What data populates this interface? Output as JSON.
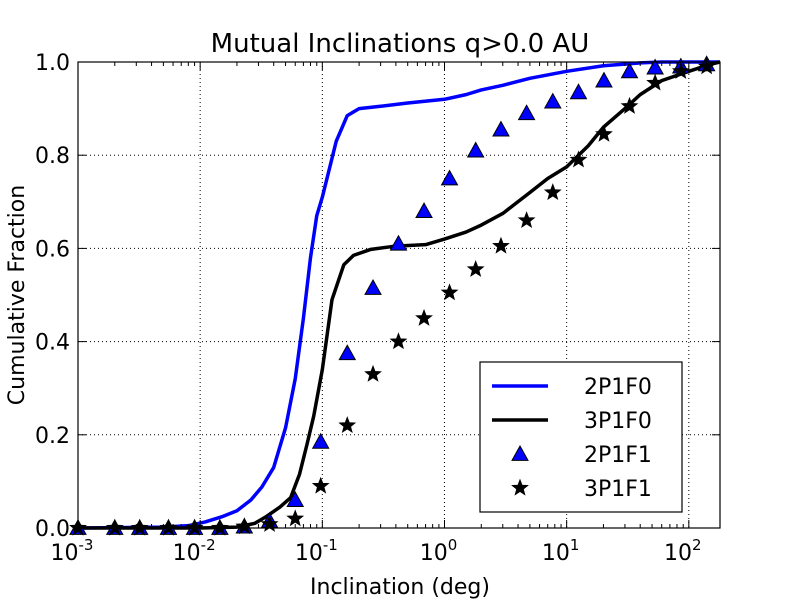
{
  "chart_data": {
    "type": "line",
    "title": "Mutual Inclinations q>0.0 AU",
    "xlabel": "Inclination (deg)",
    "ylabel": "Cumulative Fraction",
    "xscale": "log",
    "xlim": [
      0.001,
      180
    ],
    "ylim": [
      0,
      1.0
    ],
    "grid": true,
    "legend_position": "bottom-right",
    "x_ticks": [
      {
        "base": "10",
        "exp": "-3",
        "value": 0.001
      },
      {
        "base": "10",
        "exp": "-2",
        "value": 0.01
      },
      {
        "base": "10",
        "exp": "-1",
        "value": 0.1
      },
      {
        "base": "10",
        "exp": "0",
        "value": 1
      },
      {
        "base": "10",
        "exp": "1",
        "value": 10
      },
      {
        "base": "10",
        "exp": "2",
        "value": 100
      }
    ],
    "y_ticks": [
      {
        "label": "0.0",
        "value": 0.0
      },
      {
        "label": "0.2",
        "value": 0.2
      },
      {
        "label": "0.4",
        "value": 0.4
      },
      {
        "label": "0.6",
        "value": 0.6
      },
      {
        "label": "0.8",
        "value": 0.8
      },
      {
        "label": "1.0",
        "value": 1.0
      }
    ],
    "series": [
      {
        "name": "2P1F0",
        "style": "line",
        "color": "#0000ff",
        "points": [
          [
            0.001,
            0.0
          ],
          [
            0.005,
            0.002
          ],
          [
            0.008,
            0.005
          ],
          [
            0.011,
            0.013
          ],
          [
            0.015,
            0.024
          ],
          [
            0.02,
            0.037
          ],
          [
            0.026,
            0.06
          ],
          [
            0.032,
            0.088
          ],
          [
            0.04,
            0.13
          ],
          [
            0.05,
            0.215
          ],
          [
            0.06,
            0.32
          ],
          [
            0.07,
            0.45
          ],
          [
            0.08,
            0.58
          ],
          [
            0.09,
            0.67
          ],
          [
            0.1,
            0.71
          ],
          [
            0.13,
            0.83
          ],
          [
            0.16,
            0.885
          ],
          [
            0.2,
            0.9
          ],
          [
            0.3,
            0.905
          ],
          [
            0.5,
            0.912
          ],
          [
            1.0,
            0.92
          ],
          [
            1.5,
            0.93
          ],
          [
            2.0,
            0.94
          ],
          [
            3.0,
            0.95
          ],
          [
            5.0,
            0.965
          ],
          [
            10.0,
            0.98
          ],
          [
            20.0,
            0.992
          ],
          [
            40.0,
            0.998
          ],
          [
            60.0,
            1.0
          ],
          [
            180.0,
            1.0
          ]
        ]
      },
      {
        "name": "3P1F0",
        "style": "line",
        "color": "#000000",
        "points": [
          [
            0.001,
            0.0
          ],
          [
            0.01,
            0.0
          ],
          [
            0.02,
            0.002
          ],
          [
            0.028,
            0.01
          ],
          [
            0.035,
            0.025
          ],
          [
            0.045,
            0.045
          ],
          [
            0.055,
            0.065
          ],
          [
            0.065,
            0.115
          ],
          [
            0.075,
            0.18
          ],
          [
            0.085,
            0.24
          ],
          [
            0.1,
            0.34
          ],
          [
            0.12,
            0.49
          ],
          [
            0.15,
            0.565
          ],
          [
            0.18,
            0.585
          ],
          [
            0.25,
            0.598
          ],
          [
            0.4,
            0.605
          ],
          [
            0.7,
            0.608
          ],
          [
            1.0,
            0.62
          ],
          [
            1.5,
            0.635
          ],
          [
            2.0,
            0.65
          ],
          [
            3.0,
            0.675
          ],
          [
            5.0,
            0.72
          ],
          [
            7.0,
            0.75
          ],
          [
            10.0,
            0.775
          ],
          [
            15.0,
            0.82
          ],
          [
            20.0,
            0.86
          ],
          [
            30.0,
            0.9
          ],
          [
            40.0,
            0.93
          ],
          [
            60.0,
            0.96
          ],
          [
            100.0,
            0.98
          ],
          [
            150.0,
            0.995
          ],
          [
            180.0,
            1.0
          ]
        ]
      },
      {
        "name": "2P1F1",
        "style": "marker",
        "marker": "triangle",
        "color": "#0000ff",
        "points": [
          [
            0.001,
            0.0
          ],
          [
            0.002,
            0.0
          ],
          [
            0.0032,
            0.0
          ],
          [
            0.0055,
            0.0
          ],
          [
            0.009,
            0.0
          ],
          [
            0.0145,
            0.0
          ],
          [
            0.023,
            0.003
          ],
          [
            0.037,
            0.015
          ],
          [
            0.06,
            0.06
          ],
          [
            0.097,
            0.185
          ],
          [
            0.16,
            0.375
          ],
          [
            0.26,
            0.515
          ],
          [
            0.42,
            0.61
          ],
          [
            0.68,
            0.68
          ],
          [
            1.1,
            0.75
          ],
          [
            1.8,
            0.81
          ],
          [
            2.9,
            0.855
          ],
          [
            4.7,
            0.89
          ],
          [
            7.7,
            0.915
          ],
          [
            12.5,
            0.935
          ],
          [
            20.2,
            0.96
          ],
          [
            32.7,
            0.98
          ],
          [
            53.0,
            0.988
          ],
          [
            86.0,
            0.99
          ],
          [
            140.0,
            0.995
          ]
        ]
      },
      {
        "name": "3P1F1",
        "style": "marker",
        "marker": "star",
        "color": "#000000",
        "points": [
          [
            0.001,
            0.0
          ],
          [
            0.002,
            0.0
          ],
          [
            0.0032,
            0.0
          ],
          [
            0.0055,
            0.0
          ],
          [
            0.009,
            0.0
          ],
          [
            0.0145,
            0.0
          ],
          [
            0.023,
            0.003
          ],
          [
            0.037,
            0.008
          ],
          [
            0.06,
            0.02
          ],
          [
            0.097,
            0.09
          ],
          [
            0.16,
            0.22
          ],
          [
            0.26,
            0.33
          ],
          [
            0.42,
            0.4
          ],
          [
            0.68,
            0.45
          ],
          [
            1.1,
            0.505
          ],
          [
            1.8,
            0.555
          ],
          [
            2.9,
            0.605
          ],
          [
            4.7,
            0.66
          ],
          [
            7.7,
            0.72
          ],
          [
            12.5,
            0.79
          ],
          [
            20.2,
            0.845
          ],
          [
            32.7,
            0.905
          ],
          [
            53.0,
            0.955
          ],
          [
            86.0,
            0.98
          ],
          [
            140.0,
            0.99
          ]
        ]
      }
    ]
  }
}
